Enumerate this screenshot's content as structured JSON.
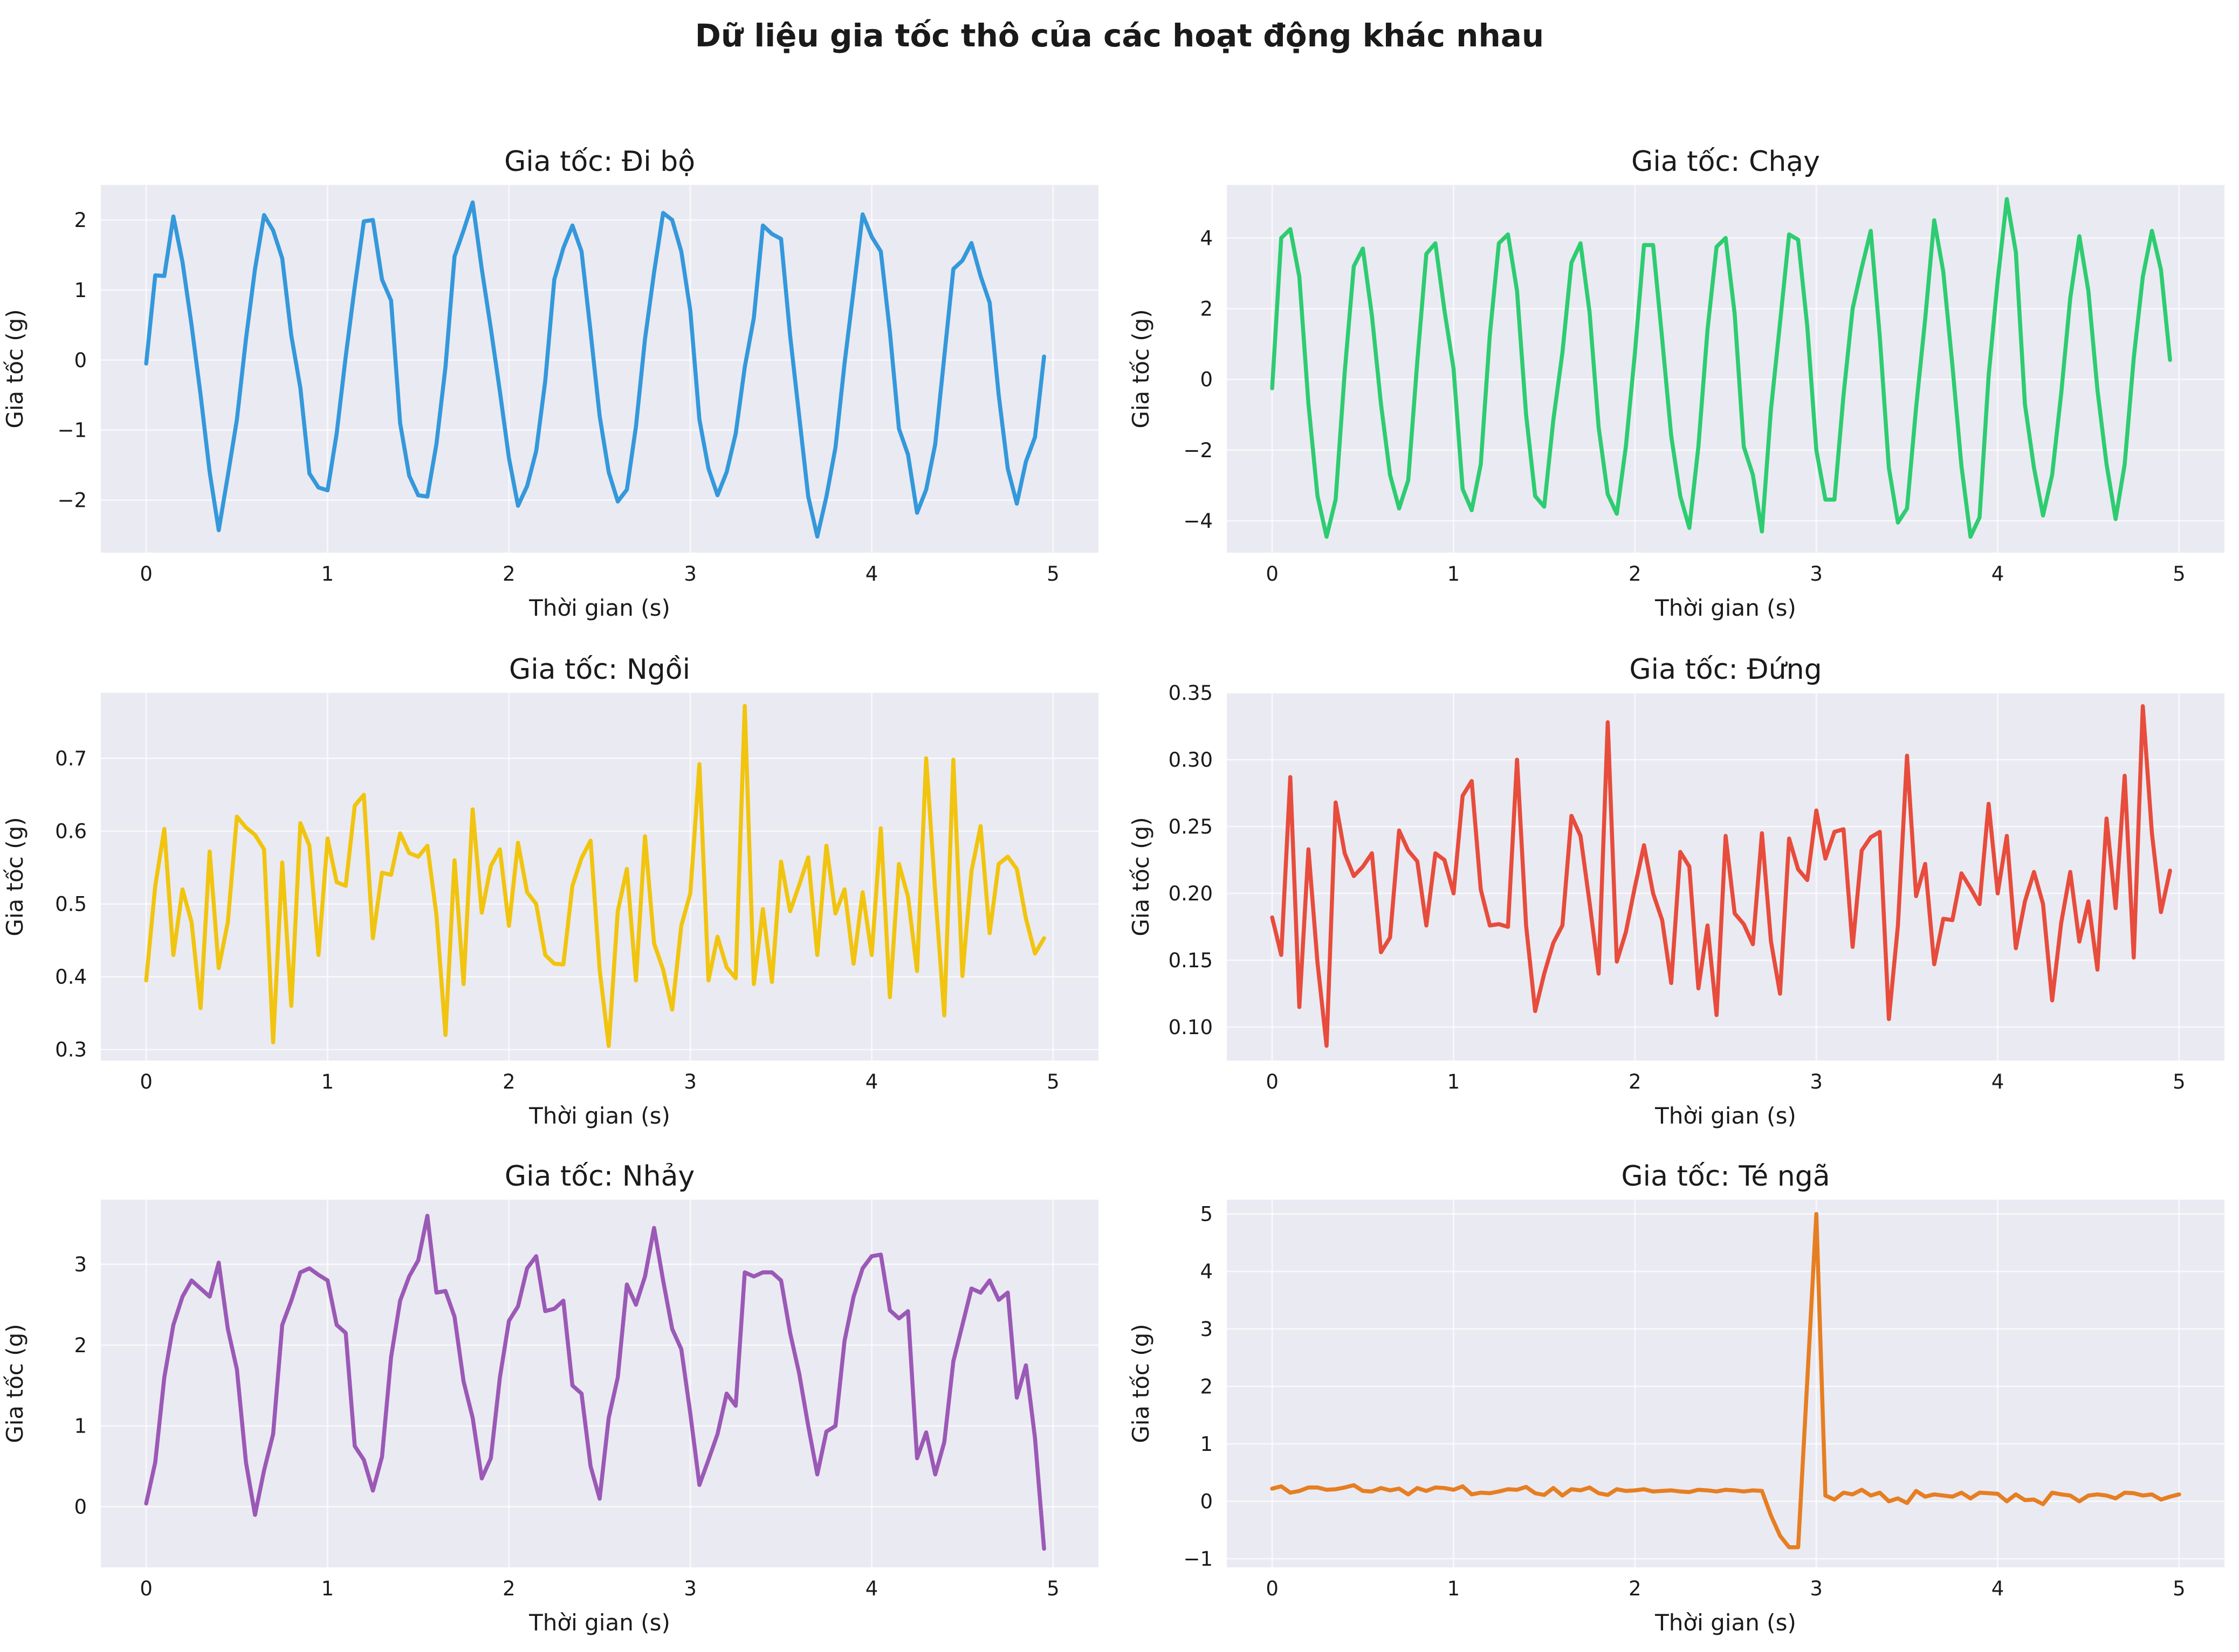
{
  "figure": {
    "suptitle": "Dữ liệu gia tốc thô của các hoạt động khác nhau"
  },
  "chart_data": [
    {
      "type": "line",
      "title": "Gia tốc: Đi bộ",
      "xlabel": "Thời gian (s)",
      "ylabel": "Gia tốc (g)",
      "color": "#3498db",
      "xlim": [
        -0.25,
        5.25
      ],
      "ylim": [
        -2.75,
        2.5
      ],
      "xticks": [
        0,
        1,
        2,
        3,
        4,
        5
      ],
      "xtick_labels": [
        "0",
        "1",
        "2",
        "3",
        "4",
        "5"
      ],
      "yticks": [
        -2,
        -1,
        0,
        1,
        2
      ],
      "ytick_labels": [
        "−2",
        "−1",
        "0",
        "1",
        "2"
      ],
      "series": [
        {
          "x_start": 0,
          "x_step": 0.05,
          "values": [
            -0.05,
            1.21,
            1.2,
            2.05,
            1.4,
            0.5,
            -0.5,
            -1.6,
            -2.43,
            -1.65,
            -0.85,
            0.3,
            1.3,
            2.07,
            1.85,
            1.45,
            0.35,
            -0.4,
            -1.62,
            -1.82,
            -1.86,
            -1.05,
            0.05,
            1.05,
            1.98,
            2.0,
            1.15,
            0.85,
            -0.9,
            -1.65,
            -1.93,
            -1.95,
            -1.2,
            -0.1,
            1.48,
            1.85,
            2.25,
            1.3,
            0.45,
            -0.45,
            -1.4,
            -2.08,
            -1.8,
            -1.3,
            -0.3,
            1.15,
            1.6,
            1.92,
            1.55,
            0.4,
            -0.8,
            -1.6,
            -2.02,
            -1.85,
            -0.95,
            0.3,
            1.25,
            2.1,
            2.0,
            1.55,
            0.7,
            -0.85,
            -1.55,
            -1.93,
            -1.6,
            -1.05,
            -0.1,
            0.6,
            1.92,
            1.8,
            1.73,
            0.35,
            -0.8,
            -1.95,
            -2.52,
            -1.95,
            -1.25,
            -0.05,
            1.0,
            2.08,
            1.76,
            1.55,
            0.4,
            -0.98,
            -1.35,
            -2.18,
            -1.85,
            -1.2,
            0.05,
            1.3,
            1.42,
            1.67,
            1.2,
            0.82,
            -0.5,
            -1.55,
            -2.05,
            -1.45,
            -1.1,
            0.05
          ]
        }
      ]
    },
    {
      "type": "line",
      "title": "Gia tốc: Chạy",
      "xlabel": "Thời gian (s)",
      "ylabel": "Gia tốc (g)",
      "color": "#2ecc71",
      "xlim": [
        -0.25,
        5.25
      ],
      "ylim": [
        -4.9,
        5.5
      ],
      "xticks": [
        0,
        1,
        2,
        3,
        4,
        5
      ],
      "xtick_labels": [
        "0",
        "1",
        "2",
        "3",
        "4",
        "5"
      ],
      "yticks": [
        -4,
        -2,
        0,
        2,
        4
      ],
      "ytick_labels": [
        "−4",
        "−2",
        "0",
        "2",
        "4"
      ],
      "series": [
        {
          "x_start": 0,
          "x_step": 0.05,
          "values": [
            -0.25,
            4.0,
            4.25,
            2.9,
            -0.7,
            -3.3,
            -4.45,
            -3.4,
            0.2,
            3.2,
            3.7,
            1.8,
            -0.7,
            -2.7,
            -3.65,
            -2.85,
            0.5,
            3.55,
            3.85,
            1.95,
            0.3,
            -3.1,
            -3.7,
            -2.4,
            1.25,
            3.85,
            4.1,
            2.5,
            -1.0,
            -3.3,
            -3.6,
            -1.15,
            0.75,
            3.3,
            3.85,
            1.9,
            -1.35,
            -3.25,
            -3.8,
            -1.9,
            0.75,
            3.8,
            3.8,
            1.15,
            -1.6,
            -3.3,
            -4.2,
            -1.9,
            1.4,
            3.75,
            4.0,
            1.85,
            -1.9,
            -2.7,
            -4.3,
            -0.85,
            1.6,
            4.1,
            3.95,
            1.5,
            -2.0,
            -3.4,
            -3.4,
            -0.45,
            2.0,
            3.15,
            4.2,
            1.2,
            -2.5,
            -4.05,
            -3.65,
            -0.8,
            1.7,
            4.5,
            3.05,
            0.4,
            -2.45,
            -4.45,
            -3.9,
            0.1,
            2.8,
            5.1,
            3.6,
            -0.7,
            -2.5,
            -3.85,
            -2.7,
            -0.4,
            2.3,
            4.05,
            2.5,
            -0.3,
            -2.4,
            -3.95,
            -2.4,
            0.6,
            2.9,
            4.2,
            3.1,
            0.55
          ]
        }
      ]
    },
    {
      "type": "line",
      "title": "Gia tốc: Ngồi",
      "xlabel": "Thời gian (s)",
      "ylabel": "Gia tốc (g)",
      "color": "#f1c40f",
      "xlim": [
        -0.25,
        5.25
      ],
      "ylim": [
        0.285,
        0.79
      ],
      "xticks": [
        0,
        1,
        2,
        3,
        4,
        5
      ],
      "xtick_labels": [
        "0",
        "1",
        "2",
        "3",
        "4",
        "5"
      ],
      "yticks": [
        0.3,
        0.4,
        0.5,
        0.6,
        0.7
      ],
      "ytick_labels": [
        "0.3",
        "0.4",
        "0.5",
        "0.6",
        "0.7"
      ],
      "series": [
        {
          "x_start": 0,
          "x_step": 0.05,
          "values": [
            0.395,
            0.525,
            0.603,
            0.43,
            0.52,
            0.475,
            0.357,
            0.572,
            0.412,
            0.475,
            0.62,
            0.605,
            0.595,
            0.575,
            0.31,
            0.557,
            0.36,
            0.611,
            0.58,
            0.43,
            0.59,
            0.53,
            0.525,
            0.635,
            0.65,
            0.453,
            0.543,
            0.54,
            0.597,
            0.57,
            0.565,
            0.58,
            0.485,
            0.32,
            0.56,
            0.39,
            0.63,
            0.488,
            0.552,
            0.575,
            0.47,
            0.584,
            0.516,
            0.5,
            0.43,
            0.418,
            0.417,
            0.525,
            0.563,
            0.587,
            0.41,
            0.305,
            0.49,
            0.548,
            0.395,
            0.593,
            0.446,
            0.41,
            0.355,
            0.47,
            0.515,
            0.692,
            0.395,
            0.455,
            0.413,
            0.398,
            0.772,
            0.39,
            0.493,
            0.393,
            0.558,
            0.49,
            0.526,
            0.564,
            0.43,
            0.58,
            0.487,
            0.52,
            0.418,
            0.516,
            0.43,
            0.604,
            0.372,
            0.555,
            0.51,
            0.408,
            0.7,
            0.516,
            0.347,
            0.698,
            0.401,
            0.545,
            0.607,
            0.46,
            0.555,
            0.565,
            0.548,
            0.48,
            0.432,
            0.453
          ]
        }
      ]
    },
    {
      "type": "line",
      "title": "Gia tốc: Đứng",
      "xlabel": "Thời gian (s)",
      "ylabel": "Gia tốc (g)",
      "color": "#e74c3c",
      "xlim": [
        -0.25,
        5.25
      ],
      "ylim": [
        0.075,
        0.35
      ],
      "xticks": [
        0,
        1,
        2,
        3,
        4,
        5
      ],
      "xtick_labels": [
        "0",
        "1",
        "2",
        "3",
        "4",
        "5"
      ],
      "yticks": [
        0.1,
        0.15,
        0.2,
        0.25,
        0.3,
        0.35
      ],
      "ytick_labels": [
        "0.10",
        "0.15",
        "0.20",
        "0.25",
        "0.30",
        "0.35"
      ],
      "series": [
        {
          "x_start": 0,
          "x_step": 0.05,
          "values": [
            0.182,
            0.154,
            0.287,
            0.115,
            0.233,
            0.148,
            0.086,
            0.268,
            0.23,
            0.213,
            0.22,
            0.23,
            0.156,
            0.167,
            0.247,
            0.232,
            0.224,
            0.176,
            0.23,
            0.225,
            0.2,
            0.273,
            0.284,
            0.203,
            0.176,
            0.177,
            0.175,
            0.3,
            0.176,
            0.112,
            0.14,
            0.163,
            0.176,
            0.258,
            0.243,
            0.193,
            0.14,
            0.328,
            0.149,
            0.171,
            0.205,
            0.236,
            0.2,
            0.18,
            0.133,
            0.231,
            0.22,
            0.129,
            0.176,
            0.109,
            0.243,
            0.185,
            0.177,
            0.162,
            0.245,
            0.164,
            0.125,
            0.241,
            0.218,
            0.21,
            0.262,
            0.226,
            0.246,
            0.248,
            0.16,
            0.232,
            0.242,
            0.246,
            0.106,
            0.176,
            0.303,
            0.198,
            0.222,
            0.147,
            0.181,
            0.18,
            0.215,
            0.204,
            0.192,
            0.267,
            0.2,
            0.243,
            0.159,
            0.194,
            0.216,
            0.192,
            0.12,
            0.178,
            0.216,
            0.164,
            0.194,
            0.143,
            0.256,
            0.189,
            0.288,
            0.152,
            0.34,
            0.245,
            0.186,
            0.217
          ]
        }
      ]
    },
    {
      "type": "line",
      "title": "Gia tốc: Nhảy",
      "xlabel": "Thời gian (s)",
      "ylabel": "Gia tốc (g)",
      "color": "#9b59b6",
      "xlim": [
        -0.25,
        5.25
      ],
      "ylim": [
        -0.75,
        3.8
      ],
      "xticks": [
        0,
        1,
        2,
        3,
        4,
        5
      ],
      "xtick_labels": [
        "0",
        "1",
        "2",
        "3",
        "4",
        "5"
      ],
      "yticks": [
        0,
        1,
        2,
        3
      ],
      "ytick_labels": [
        "0",
        "1",
        "2",
        "3"
      ],
      "series": [
        {
          "x_start": 0,
          "x_step": 0.05,
          "values": [
            0.04,
            0.55,
            1.6,
            2.25,
            2.6,
            2.8,
            2.7,
            2.6,
            3.02,
            2.2,
            1.7,
            0.55,
            -0.1,
            0.45,
            0.9,
            2.25,
            2.55,
            2.9,
            2.95,
            2.87,
            2.8,
            2.25,
            2.15,
            0.75,
            0.58,
            0.2,
            0.62,
            1.85,
            2.55,
            2.85,
            3.05,
            3.6,
            2.65,
            2.67,
            2.35,
            1.55,
            1.1,
            0.35,
            0.6,
            1.6,
            2.3,
            2.48,
            2.95,
            3.1,
            2.42,
            2.45,
            2.55,
            1.5,
            1.4,
            0.5,
            0.1,
            1.1,
            1.6,
            2.75,
            2.5,
            2.85,
            3.45,
            2.8,
            2.2,
            1.95,
            1.15,
            0.27,
            0.58,
            0.9,
            1.4,
            1.25,
            2.9,
            2.85,
            2.9,
            2.9,
            2.8,
            2.15,
            1.65,
            1.0,
            0.4,
            0.93,
            1.0,
            2.05,
            2.6,
            2.95,
            3.1,
            3.12,
            2.43,
            2.33,
            2.42,
            0.6,
            0.92,
            0.4,
            0.8,
            1.8,
            2.25,
            2.7,
            2.65,
            2.8,
            2.56,
            2.65,
            1.35,
            1.75,
            0.85,
            -0.52
          ]
        }
      ]
    },
    {
      "type": "line",
      "title": "Gia tốc: Té ngã",
      "xlabel": "Thời gian (s)",
      "ylabel": "Gia tốc (g)",
      "color": "#e67e22",
      "xlim": [
        -0.25,
        5.25
      ],
      "ylim": [
        -1.15,
        5.25
      ],
      "xticks": [
        0,
        1,
        2,
        3,
        4,
        5
      ],
      "xtick_labels": [
        "0",
        "1",
        "2",
        "3",
        "4",
        "5"
      ],
      "yticks": [
        -1,
        0,
        1,
        2,
        3,
        4,
        5
      ],
      "ytick_labels": [
        "−1",
        "0",
        "1",
        "2",
        "3",
        "4",
        "5"
      ],
      "series": [
        {
          "x_start": 0,
          "x_step": 0.05,
          "values": [
            0.22,
            0.26,
            0.15,
            0.18,
            0.24,
            0.24,
            0.2,
            0.21,
            0.24,
            0.28,
            0.18,
            0.17,
            0.23,
            0.19,
            0.22,
            0.12,
            0.23,
            0.18,
            0.24,
            0.23,
            0.2,
            0.26,
            0.12,
            0.15,
            0.14,
            0.17,
            0.21,
            0.2,
            0.25,
            0.14,
            0.11,
            0.23,
            0.1,
            0.21,
            0.19,
            0.24,
            0.14,
            0.11,
            0.21,
            0.18,
            0.19,
            0.21,
            0.17,
            0.18,
            0.19,
            0.17,
            0.16,
            0.2,
            0.19,
            0.17,
            0.2,
            0.19,
            0.17,
            0.19,
            0.18,
            -0.25,
            -0.6,
            -0.8,
            -0.8,
            2.1,
            5.0,
            0.1,
            0.03,
            0.15,
            0.12,
            0.2,
            0.1,
            0.15,
            0.0,
            0.05,
            -0.03,
            0.18,
            0.08,
            0.12,
            0.1,
            0.08,
            0.15,
            0.05,
            0.15,
            0.14,
            0.13,
            0.0,
            0.12,
            0.02,
            0.03,
            -0.05,
            0.15,
            0.12,
            0.1,
            0.0,
            0.1,
            0.12,
            0.1,
            0.05,
            0.15,
            0.14,
            0.1,
            0.12,
            0.03,
            0.08,
            0.12
          ]
        }
      ]
    }
  ]
}
